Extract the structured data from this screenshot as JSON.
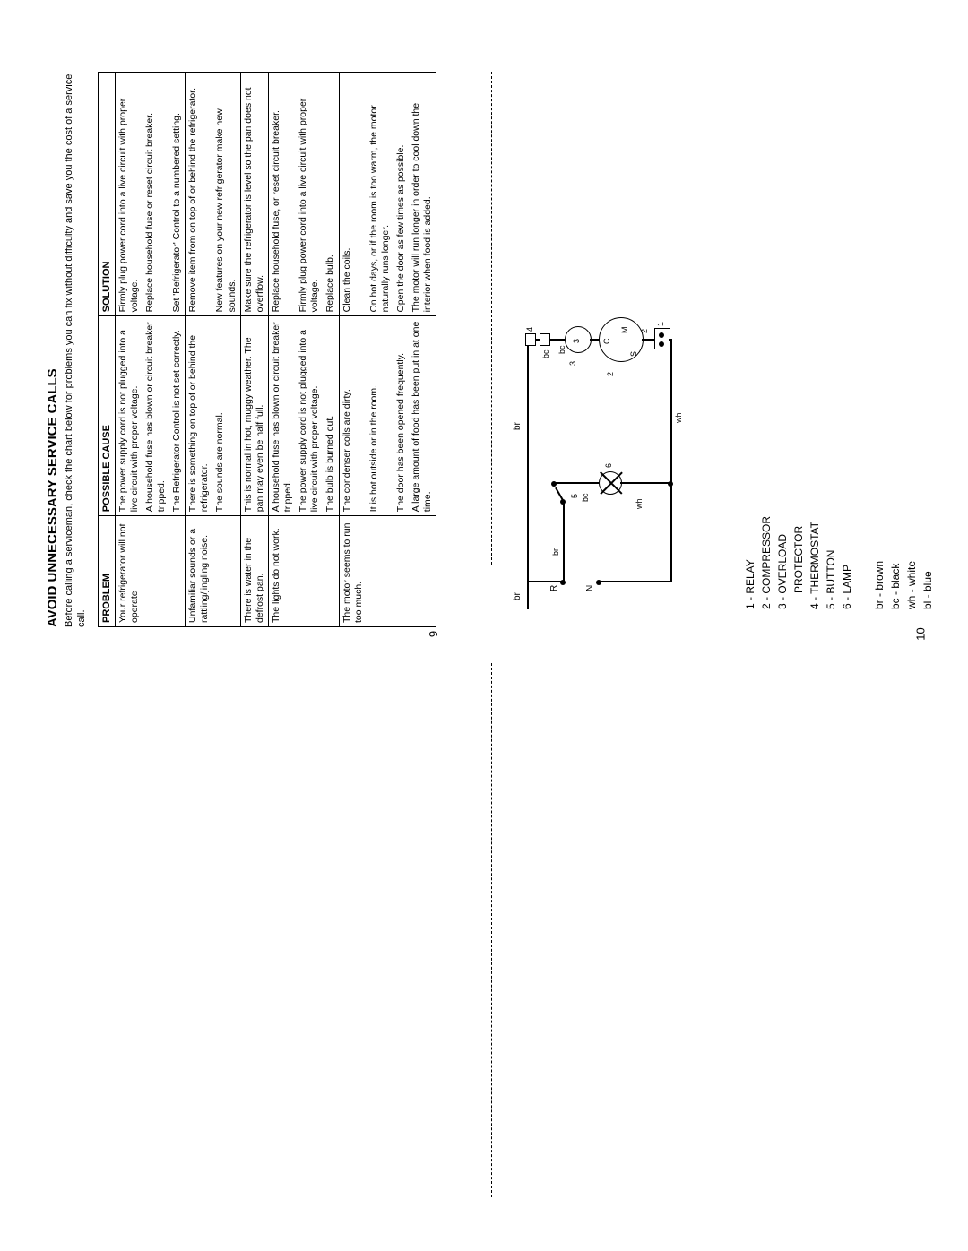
{
  "title": "AVOID UNNECESSARY SERVICE CALLS",
  "intro": "Before calling a serviceman, check the chart below for problems you can fix without difficulty and save you the cost of a service call.",
  "table": {
    "headers": [
      "PROBLEM",
      "POSSIBLE CAUSE",
      "SOLUTION"
    ],
    "rows": [
      {
        "problem": "Your refrigerator will not operate",
        "cause": "The power supply cord is not plugged into a live circuit with proper voltage.",
        "solution": "Firmly plug power cord into a live circuit with proper voltage.",
        "end": false
      },
      {
        "problem": "",
        "cause": "A household fuse has blown or circuit breaker tripped.",
        "solution": "Replace household fuse or reset circuit breaker.",
        "end": false
      },
      {
        "problem": "",
        "cause": "The Refrigerator Control is not set correctly.",
        "solution": "Set 'Refrigerator' Control to a numbered setting.",
        "end": true
      },
      {
        "problem": "Unfamiliar sounds or a rattling/jingling noise.",
        "cause": "There is something on top of or behind the refrigerator.",
        "solution": "Remove item from on top of or behind the refrigerator.",
        "end": false
      },
      {
        "problem": "",
        "cause": "The sounds are normal.",
        "solution": "New features on your new refrigerator make new sounds.",
        "end": true
      },
      {
        "problem": "There is water in the defrost pan.",
        "cause": "This is normal in hot, muggy weather. The pan may even be half full.",
        "solution": "Make sure the refrigerator is level so the pan does not overflow.",
        "end": true
      },
      {
        "problem": "The lights do not work.",
        "cause": "A household fuse has blown or circuit breaker tripped.",
        "solution": "Replace household fuse, or reset circuit breaker.",
        "end": false
      },
      {
        "problem": "",
        "cause": "The power supply cord is not plugged into a live circuit with proper voltage.",
        "solution": "Firmly plug power cord into a live circuit with proper voltage.",
        "end": false
      },
      {
        "problem": "",
        "cause": "The bulb is burned out.",
        "solution": "Replace bulb.",
        "end": true
      },
      {
        "problem": "The motor seems to run too much.",
        "cause": "The condenser coils are dirty.",
        "solution": "Clean the coils.",
        "end": false
      },
      {
        "problem": "",
        "cause": "It is hot outside or in the room.",
        "solution": "On hot days, or if the room is too warm, the motor naturally runs longer.",
        "end": false
      },
      {
        "problem": "",
        "cause": "The door has been opened frequently.",
        "solution": "Open the door as few times as possible.",
        "end": false
      },
      {
        "problem": "",
        "cause": "A large amount of food has been put in at one time.",
        "solution": "The motor will run longer in order to cool down the interior when food is added.",
        "end": true
      }
    ]
  },
  "page_left_num": "9",
  "legend": [
    "1 - RELAY",
    "2 - COMPRESSOR",
    "3 - OVERLOAD PROTECTOR",
    "4 - THERMOSTAT",
    "5 - BUTTON",
    "6 - LAMP"
  ],
  "colors_legend": [
    "br - brown",
    "bc - black",
    "wh - white",
    "bl - blue"
  ],
  "page_right_num": "10",
  "schematic": {
    "top_left_br": "br",
    "top_right_br": "br",
    "top_right_num4": "4",
    "bc_labels": "bc",
    "R_label": "R",
    "N_label": "N",
    "num5": "5",
    "num6": "6",
    "num3": "3",
    "num2": "2",
    "num1": "1",
    "cms": {
      "c": "C",
      "m": "M",
      "s": "S"
    },
    "br_label": "br",
    "bc_label": "bc",
    "wh_label": "wh"
  }
}
